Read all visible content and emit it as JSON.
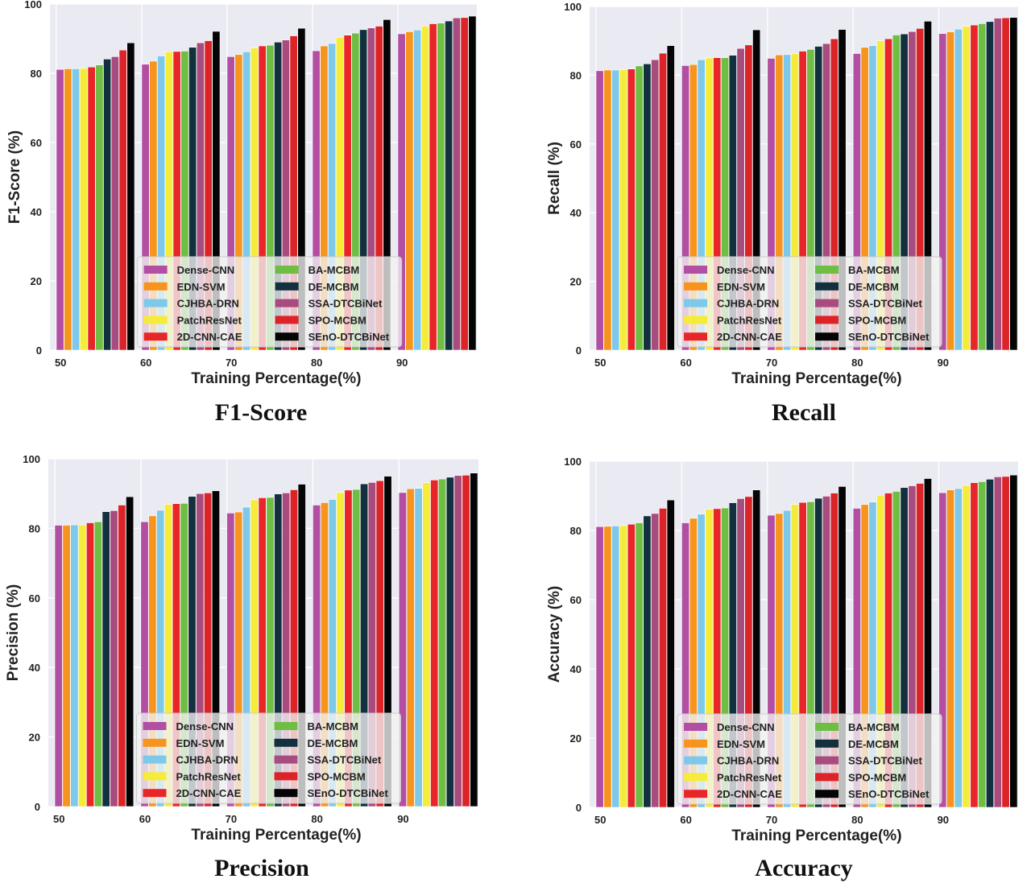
{
  "colors": {
    "plot_background": "#eaeaf2",
    "grid": "#ffffff",
    "series": [
      "#b24fa3",
      "#f7941d",
      "#7ec8ea",
      "#f5eb3b",
      "#e8262a",
      "#6ebe44",
      "#12303d",
      "#a84b7e",
      "#dc2428",
      "#050505"
    ]
  },
  "chart_data": [
    {
      "type": "bar",
      "title": "F1-Score",
      "xlabel": "Training Percentage(%)",
      "ylabel": "F1-Score (%)",
      "ylim": [
        0,
        100
      ],
      "yticks": [
        "0",
        "20",
        "40",
        "60",
        "80",
        "100"
      ],
      "categories": [
        "50",
        "60",
        "70",
        "80",
        "90"
      ],
      "grid": true,
      "legend_position": "lower-center",
      "series": [
        {
          "name": "Dense-CNN",
          "values": [
            81.1,
            82.6,
            84.8,
            86.5,
            91.4
          ]
        },
        {
          "name": "EDN-SVM",
          "values": [
            81.3,
            83.5,
            85.4,
            87.9,
            92.0
          ]
        },
        {
          "name": "CJHBA-DRN",
          "values": [
            81.3,
            85.0,
            86.2,
            88.6,
            92.5
          ]
        },
        {
          "name": "PatchResNet",
          "values": [
            81.4,
            86.2,
            87.3,
            90.4,
            93.6
          ]
        },
        {
          "name": "2D-CNN-CAE",
          "values": [
            81.8,
            86.3,
            87.9,
            91.0,
            94.3
          ]
        },
        {
          "name": "BA-MCBM",
          "values": [
            82.4,
            86.4,
            88.1,
            91.6,
            94.5
          ]
        },
        {
          "name": "DE-MCBM",
          "values": [
            84.1,
            87.5,
            89.0,
            92.6,
            95.1
          ]
        },
        {
          "name": "SSA-DTCBiNet",
          "values": [
            84.8,
            88.8,
            89.6,
            93.1,
            96.0
          ]
        },
        {
          "name": "SPO-MCBM",
          "values": [
            86.7,
            89.4,
            90.8,
            93.6,
            96.1
          ]
        },
        {
          "name": "SEnO-DTCBiNet",
          "values": [
            88.8,
            92.1,
            93.0,
            95.5,
            96.5
          ]
        }
      ]
    },
    {
      "type": "bar",
      "title": "Recall",
      "xlabel": "Training Percentage(%)",
      "ylabel": "Recall (%)",
      "ylim": [
        0,
        100
      ],
      "yticks": [
        "0",
        "20",
        "40",
        "60",
        "80",
        "100"
      ],
      "categories": [
        "50",
        "60",
        "70",
        "80",
        "90"
      ],
      "grid": true,
      "legend_position": "lower-center",
      "series": [
        {
          "name": "Dense-CNN",
          "values": [
            81.3,
            82.8,
            84.9,
            86.3,
            92.1
          ]
        },
        {
          "name": "EDN-SVM",
          "values": [
            81.5,
            83.1,
            85.9,
            88.1,
            92.6
          ]
        },
        {
          "name": "CJHBA-DRN",
          "values": [
            81.5,
            84.5,
            86.0,
            88.6,
            93.4
          ]
        },
        {
          "name": "PatchResNet",
          "values": [
            81.6,
            85.0,
            86.3,
            90.0,
            94.2
          ]
        },
        {
          "name": "2D-CNN-CAE",
          "values": [
            81.8,
            85.1,
            87.0,
            90.6,
            94.6
          ]
        },
        {
          "name": "BA-MCBM",
          "values": [
            82.7,
            85.1,
            87.5,
            91.7,
            95.0
          ]
        },
        {
          "name": "DE-MCBM",
          "values": [
            83.3,
            85.8,
            88.4,
            92.0,
            95.6
          ]
        },
        {
          "name": "SSA-DTCBiNet",
          "values": [
            84.5,
            87.8,
            89.2,
            92.7,
            96.6
          ]
        },
        {
          "name": "SPO-MCBM",
          "values": [
            86.4,
            88.8,
            90.6,
            93.6,
            96.7
          ]
        },
        {
          "name": "SEnO-DTCBiNet",
          "values": [
            88.6,
            93.2,
            93.3,
            95.7,
            96.8
          ]
        }
      ]
    },
    {
      "type": "bar",
      "title": "Precision",
      "xlabel": "Training Percentage(%)",
      "ylabel": "Precision (%)",
      "ylim": [
        0,
        100
      ],
      "yticks": [
        "0",
        "20",
        "40",
        "60",
        "80",
        "100"
      ],
      "categories": [
        "50",
        "60",
        "70",
        "80",
        "90"
      ],
      "grid": true,
      "legend_position": "lower-center",
      "series": [
        {
          "name": "Dense-CNN",
          "values": [
            80.9,
            81.9,
            84.4,
            86.7,
            90.3
          ]
        },
        {
          "name": "EDN-SVM",
          "values": [
            80.9,
            83.6,
            84.7,
            87.4,
            91.4
          ]
        },
        {
          "name": "CJHBA-DRN",
          "values": [
            81.0,
            85.2,
            86.1,
            88.3,
            91.5
          ]
        },
        {
          "name": "PatchResNet",
          "values": [
            81.0,
            86.9,
            88.2,
            90.3,
            93.1
          ]
        },
        {
          "name": "2D-CNN-CAE",
          "values": [
            81.6,
            87.1,
            88.8,
            91.0,
            93.9
          ]
        },
        {
          "name": "BA-MCBM",
          "values": [
            81.9,
            87.2,
            88.9,
            91.2,
            94.2
          ]
        },
        {
          "name": "DE-MCBM",
          "values": [
            84.8,
            89.2,
            89.9,
            92.8,
            94.7
          ]
        },
        {
          "name": "SSA-DTCBiNet",
          "values": [
            85.1,
            90.0,
            90.2,
            93.2,
            95.2
          ]
        },
        {
          "name": "SPO-MCBM",
          "values": [
            86.7,
            90.2,
            91.1,
            93.7,
            95.3
          ]
        },
        {
          "name": "SEnO-DTCBiNet",
          "values": [
            89.1,
            90.8,
            92.7,
            95.0,
            95.9
          ]
        }
      ]
    },
    {
      "type": "bar",
      "title": "Accuracy",
      "xlabel": "Training Percentage(%)",
      "ylabel": "Accuracy (%)",
      "ylim": [
        0,
        100
      ],
      "yticks": [
        "0",
        "20",
        "40",
        "60",
        "80",
        "100"
      ],
      "categories": [
        "50",
        "60",
        "70",
        "80",
        "90"
      ],
      "grid": true,
      "legend_position": "lower-center",
      "series": [
        {
          "name": "Dense-CNN",
          "values": [
            81.1,
            82.2,
            84.4,
            86.4,
            90.9
          ]
        },
        {
          "name": "EDN-SVM",
          "values": [
            81.2,
            83.5,
            84.9,
            87.5,
            91.7
          ]
        },
        {
          "name": "CJHBA-DRN",
          "values": [
            81.3,
            84.7,
            85.8,
            88.2,
            92.1
          ]
        },
        {
          "name": "PatchResNet",
          "values": [
            81.4,
            86.1,
            87.5,
            90.2,
            93.0
          ]
        },
        {
          "name": "2D-CNN-CAE",
          "values": [
            81.8,
            86.3,
            88.1,
            90.8,
            93.8
          ]
        },
        {
          "name": "BA-MCBM",
          "values": [
            82.2,
            86.5,
            88.3,
            91.3,
            94.1
          ]
        },
        {
          "name": "DE-MCBM",
          "values": [
            84.2,
            88.0,
            89.3,
            92.4,
            94.8
          ]
        },
        {
          "name": "SSA-DTCBiNet",
          "values": [
            84.9,
            89.2,
            89.9,
            92.9,
            95.5
          ]
        },
        {
          "name": "SPO-MCBM",
          "values": [
            86.4,
            89.8,
            90.8,
            93.6,
            95.6
          ]
        },
        {
          "name": "SEnO-DTCBiNet",
          "values": [
            88.8,
            91.7,
            92.7,
            95.0,
            96.0
          ]
        }
      ]
    }
  ]
}
